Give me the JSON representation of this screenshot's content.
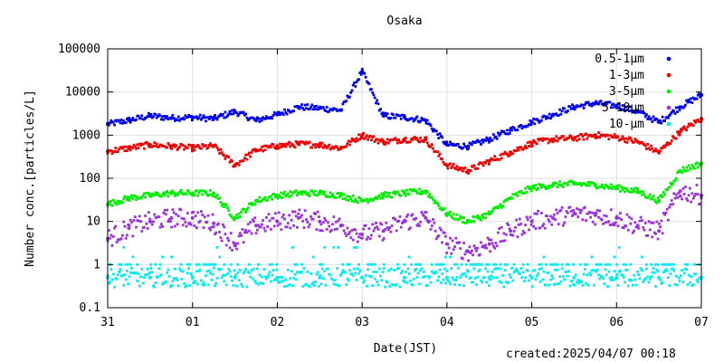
{
  "chart_data": {
    "type": "scatter",
    "title": "Osaka",
    "xlabel": "Date(JST)",
    "ylabel": "Number conc.[particles/L]",
    "yscale": "log",
    "ylim": [
      0.1,
      100000
    ],
    "xlim": [
      "2025-03-31 00:00",
      "2025-04-07 00:00"
    ],
    "x_tick_labels": [
      "31",
      "01",
      "02",
      "03",
      "04",
      "05",
      "06",
      "07"
    ],
    "y_tick_labels": [
      "0.1",
      "1",
      "10",
      "100",
      "1000",
      "10000",
      "100000"
    ],
    "grid": true,
    "legend_position": "top-right",
    "series": [
      {
        "name": "0.5-1μm",
        "color": "#0000ee",
        "x": [
          "2025-03-31 00:00",
          "2025-03-31 06:00",
          "2025-03-31 12:00",
          "2025-03-31 18:00",
          "2025-04-01 00:00",
          "2025-04-01 06:00",
          "2025-04-01 12:00",
          "2025-04-01 18:00",
          "2025-04-02 00:00",
          "2025-04-02 06:00",
          "2025-04-02 12:00",
          "2025-04-02 18:00",
          "2025-04-03 00:00",
          "2025-04-03 06:00",
          "2025-04-03 12:00",
          "2025-04-03 18:00",
          "2025-04-04 00:00",
          "2025-04-04 06:00",
          "2025-04-04 12:00",
          "2025-04-04 18:00",
          "2025-04-05 00:00",
          "2025-04-05 06:00",
          "2025-04-05 12:00",
          "2025-04-05 18:00",
          "2025-04-06 00:00",
          "2025-04-06 06:00",
          "2025-04-06 12:00",
          "2025-04-06 18:00",
          "2025-04-07 00:00"
        ],
        "y": [
          1800,
          2200,
          2800,
          2500,
          2600,
          2400,
          3500,
          2200,
          3000,
          4500,
          4200,
          3800,
          30000,
          2800,
          2600,
          2200,
          600,
          550,
          800,
          1300,
          2000,
          3000,
          4500,
          5500,
          4800,
          3500,
          2000,
          4500,
          8500
        ]
      },
      {
        "name": "1-3μm",
        "color": "#ee0000",
        "x": [
          "2025-03-31 00:00",
          "2025-03-31 06:00",
          "2025-03-31 12:00",
          "2025-03-31 18:00",
          "2025-04-01 00:00",
          "2025-04-01 06:00",
          "2025-04-01 12:00",
          "2025-04-01 18:00",
          "2025-04-02 00:00",
          "2025-04-02 06:00",
          "2025-04-02 12:00",
          "2025-04-02 18:00",
          "2025-04-03 00:00",
          "2025-04-03 06:00",
          "2025-04-03 12:00",
          "2025-04-03 18:00",
          "2025-04-04 00:00",
          "2025-04-04 06:00",
          "2025-04-04 12:00",
          "2025-04-04 18:00",
          "2025-04-05 00:00",
          "2025-04-05 06:00",
          "2025-04-05 12:00",
          "2025-04-05 18:00",
          "2025-04-06 00:00",
          "2025-04-06 06:00",
          "2025-04-06 12:00",
          "2025-04-06 18:00",
          "2025-04-07 00:00"
        ],
        "y": [
          420,
          500,
          600,
          550,
          500,
          560,
          200,
          450,
          560,
          620,
          600,
          500,
          1000,
          700,
          800,
          800,
          200,
          150,
          250,
          400,
          650,
          800,
          850,
          1000,
          900,
          700,
          400,
          1200,
          2400
        ]
      },
      {
        "name": "3-5μm",
        "color": "#00ee00",
        "x": [
          "2025-03-31 00:00",
          "2025-03-31 06:00",
          "2025-03-31 12:00",
          "2025-03-31 18:00",
          "2025-04-01 00:00",
          "2025-04-01 06:00",
          "2025-04-01 12:00",
          "2025-04-01 18:00",
          "2025-04-02 00:00",
          "2025-04-02 06:00",
          "2025-04-02 12:00",
          "2025-04-02 18:00",
          "2025-04-03 00:00",
          "2025-04-03 06:00",
          "2025-04-03 12:00",
          "2025-04-03 18:00",
          "2025-04-04 00:00",
          "2025-04-04 06:00",
          "2025-04-04 12:00",
          "2025-04-04 18:00",
          "2025-04-05 00:00",
          "2025-04-05 06:00",
          "2025-04-05 12:00",
          "2025-04-05 18:00",
          "2025-04-06 00:00",
          "2025-04-06 06:00",
          "2025-04-06 12:00",
          "2025-04-06 18:00",
          "2025-04-07 00:00"
        ],
        "y": [
          25,
          35,
          40,
          45,
          45,
          45,
          12,
          30,
          40,
          45,
          45,
          40,
          30,
          40,
          45,
          50,
          15,
          10,
          15,
          35,
          60,
          70,
          75,
          70,
          60,
          50,
          30,
          150,
          220
        ]
      },
      {
        "name": "5-10μm",
        "color": "#9933dd",
        "x": [
          "2025-03-31 00:00",
          "2025-03-31 06:00",
          "2025-03-31 12:00",
          "2025-03-31 18:00",
          "2025-04-01 00:00",
          "2025-04-01 06:00",
          "2025-04-01 12:00",
          "2025-04-01 18:00",
          "2025-04-02 00:00",
          "2025-04-02 06:00",
          "2025-04-02 12:00",
          "2025-04-02 18:00",
          "2025-04-03 00:00",
          "2025-04-03 06:00",
          "2025-04-03 12:00",
          "2025-04-03 18:00",
          "2025-04-04 00:00",
          "2025-04-04 06:00",
          "2025-04-04 12:00",
          "2025-04-04 18:00",
          "2025-04-05 00:00",
          "2025-04-05 06:00",
          "2025-04-05 12:00",
          "2025-04-05 18:00",
          "2025-04-06 00:00",
          "2025-04-06 06:00",
          "2025-04-06 12:00",
          "2025-04-06 18:00",
          "2025-04-07 00:00"
        ],
        "y": [
          4,
          7,
          10,
          12,
          12,
          9,
          3,
          8,
          10,
          12,
          10,
          8,
          5,
          6,
          10,
          12,
          3,
          2,
          3,
          6,
          10,
          12,
          15,
          14,
          12,
          8,
          6,
          50,
          40
        ]
      },
      {
        "name": "10-μm",
        "color": "#00eeee",
        "x": [
          "2025-03-31 00:00",
          "2025-03-31 12:00",
          "2025-04-01 00:00",
          "2025-04-01 12:00",
          "2025-04-02 00:00",
          "2025-04-02 12:00",
          "2025-04-03 00:00",
          "2025-04-03 12:00",
          "2025-04-04 00:00",
          "2025-04-04 12:00",
          "2025-04-05 00:00",
          "2025-04-05 12:00",
          "2025-04-06 00:00",
          "2025-04-06 12:00",
          "2025-04-07 00:00"
        ],
        "y": [
          0.5,
          0.5,
          0.5,
          0.5,
          0.5,
          0.5,
          0.5,
          0.5,
          0.5,
          0.5,
          0.5,
          0.5,
          0.5,
          0.5,
          0.5
        ]
      }
    ]
  },
  "footer": {
    "created": "created:2025/04/07 00:18"
  }
}
